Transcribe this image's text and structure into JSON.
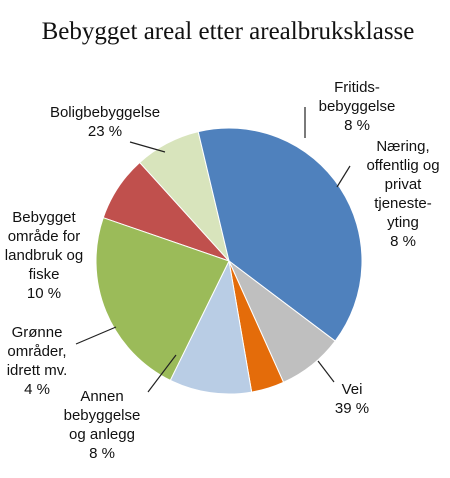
{
  "chart_data": {
    "type": "pie",
    "title": "Bebygget areal etter arealbruksklasse",
    "unit": "%",
    "slices": [
      {
        "label": "Fritids-\nbebyggelse",
        "value": 8,
        "color": "#c0504d"
      },
      {
        "label": "Næring,\noffentlig og\nprivat\ntjeneste-\nyting",
        "value": 8,
        "color": "#d8e4bc"
      },
      {
        "label": "Vei",
        "value": 39,
        "color": "#4f81bd"
      },
      {
        "label": "Annen\nbebyggelse\nog anlegg",
        "value": 8,
        "color": "#bfbfbf"
      },
      {
        "label": "Grønne\nområder,\nidrett mv.",
        "value": 4,
        "color": "#e46c0a"
      },
      {
        "label": "Bebygget\nområde for\nlandbruk og\nfiske",
        "value": 10,
        "color": "#b9cde5"
      },
      {
        "label": "Boligbebyggelse",
        "value": 23,
        "color": "#9bbb59"
      }
    ]
  }
}
